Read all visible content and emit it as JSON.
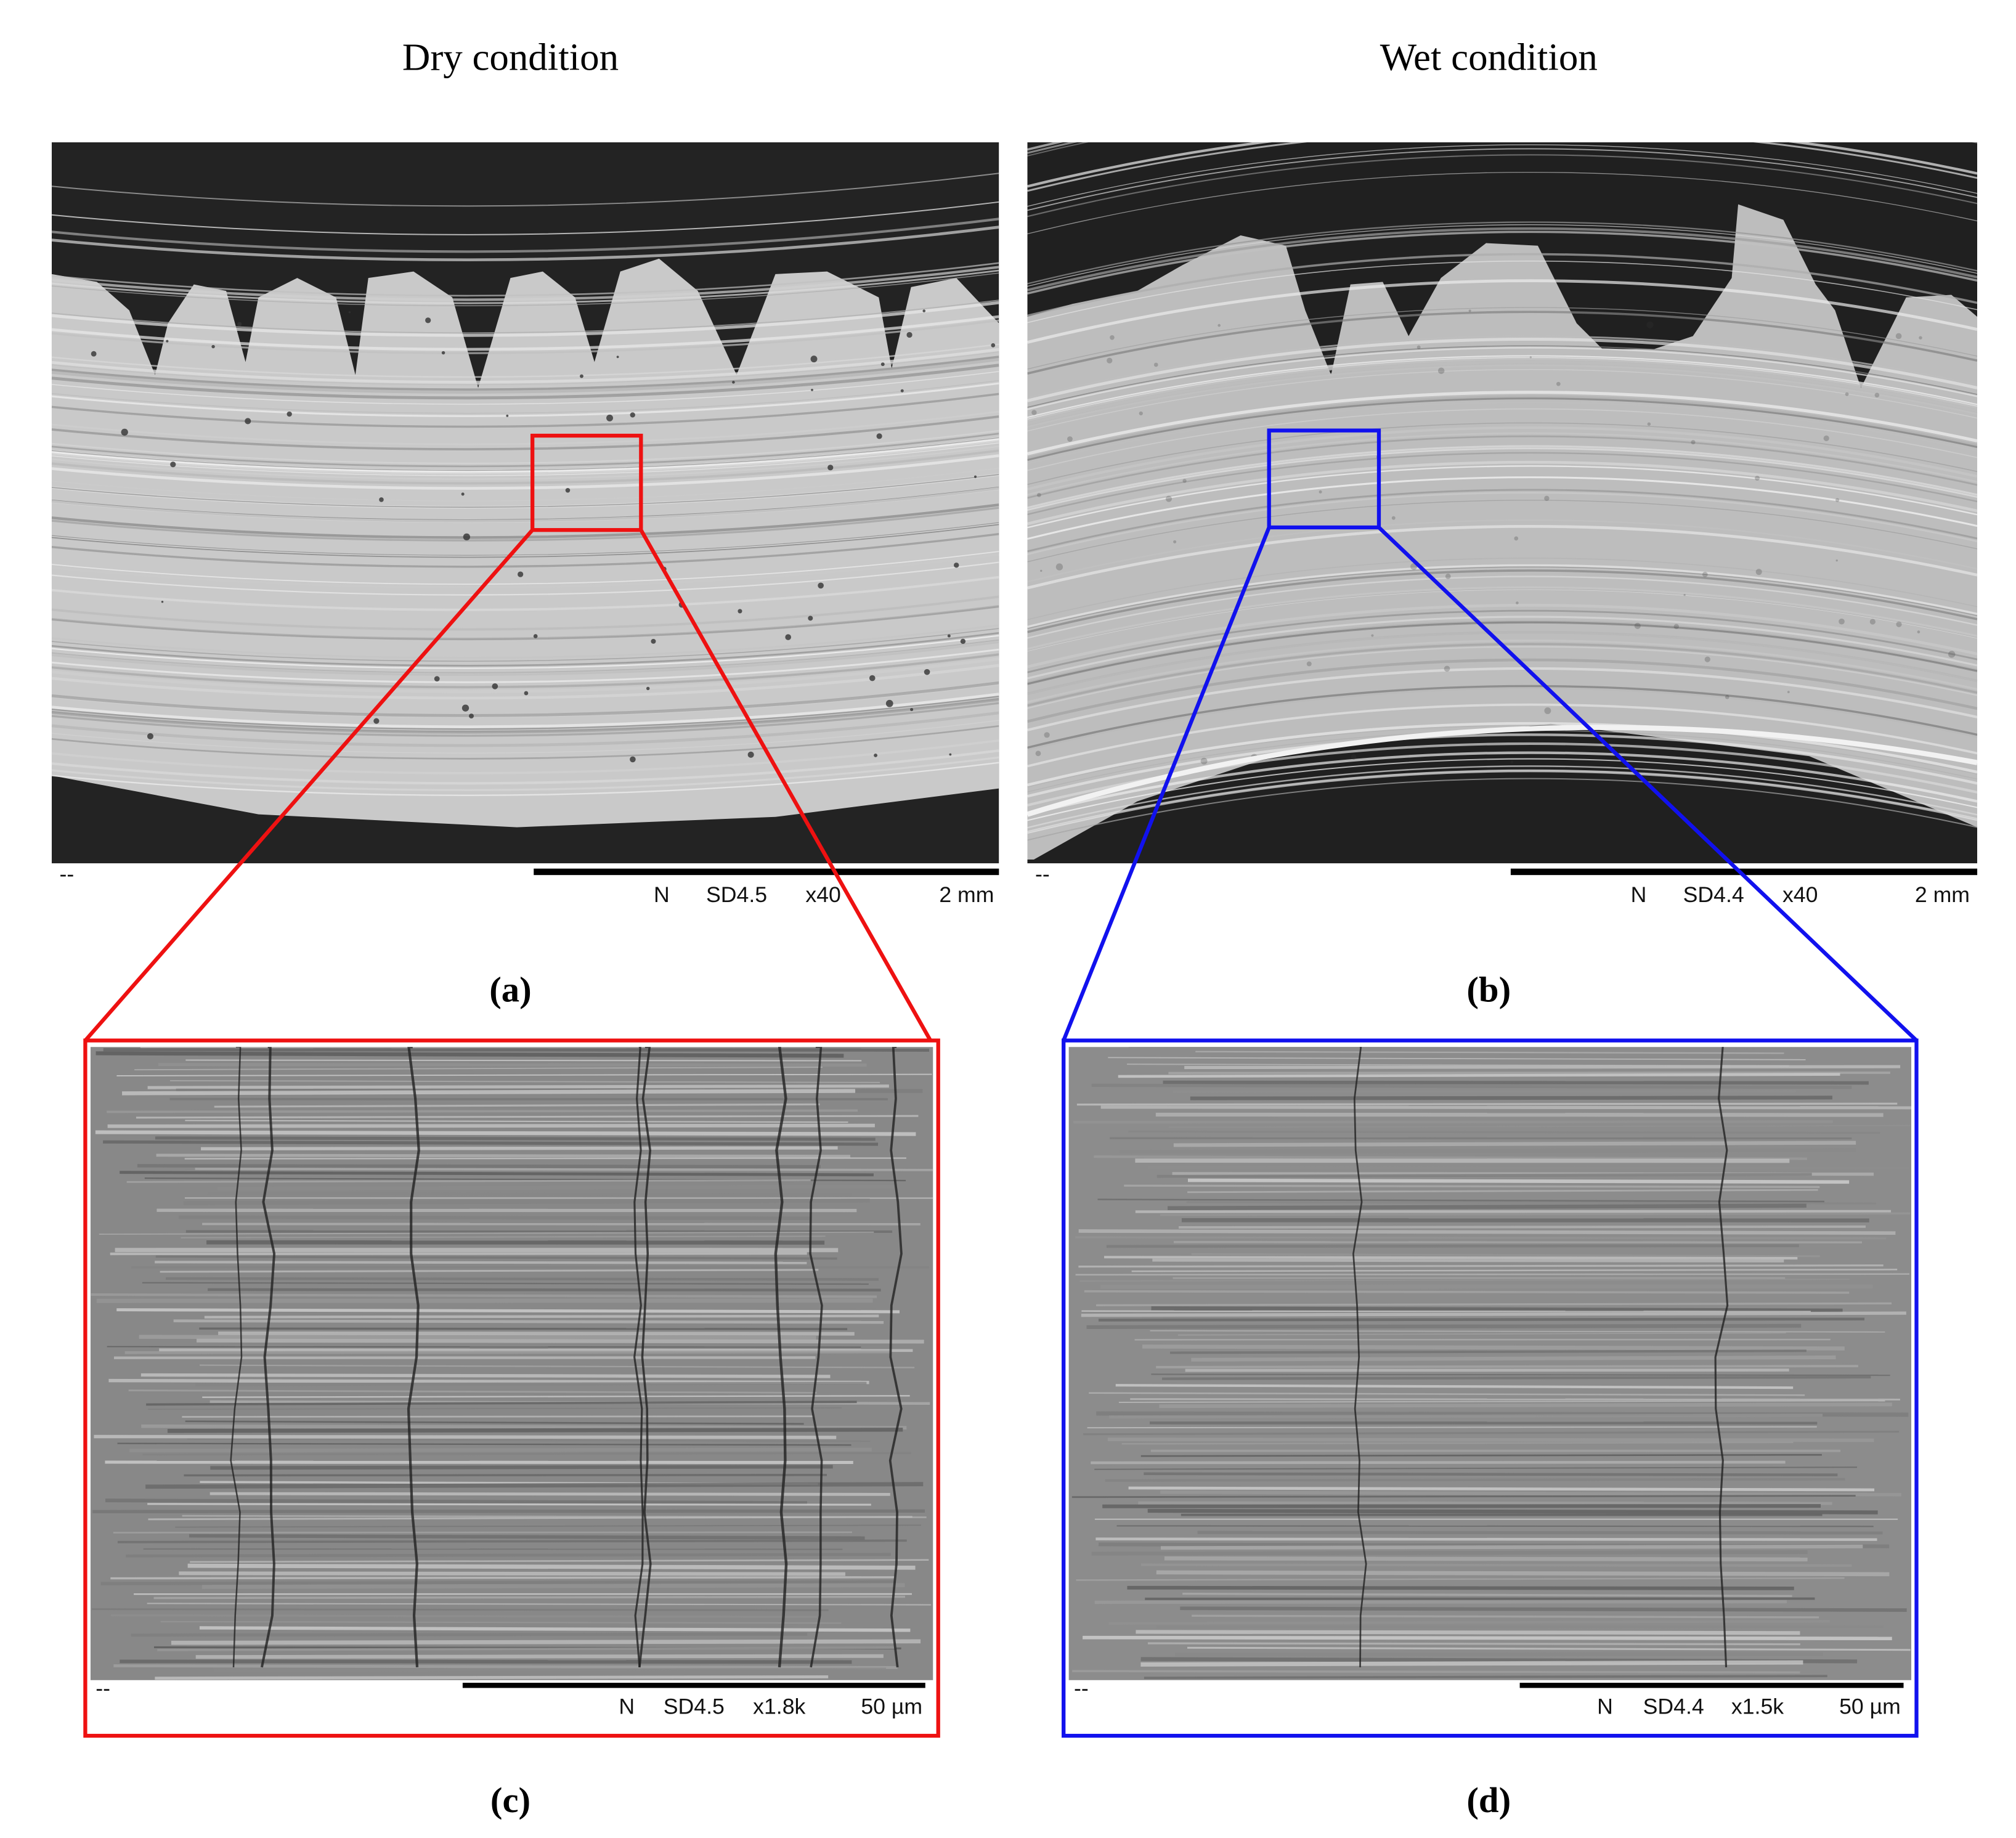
{
  "headings": [
    "Dry condition",
    "Wet condition"
  ],
  "panels": [
    {
      "label": "(a)",
      "marker": "--",
      "scale_bar": [
        "N",
        "SD4.5",
        "x40",
        "2 mm"
      ]
    },
    {
      "label": "(b)",
      "marker": "--",
      "scale_bar": [
        "N",
        "SD4.4",
        "x40",
        "2 mm"
      ]
    },
    {
      "label": "(c)",
      "marker": "--",
      "scale_bar": [
        "N",
        "SD4.5",
        "x1.8k",
        "50 µm"
      ]
    },
    {
      "label": "(d)",
      "marker": "--",
      "scale_bar": [
        "N",
        "SD4.4",
        "x1.5k",
        "50 µm"
      ]
    }
  ]
}
